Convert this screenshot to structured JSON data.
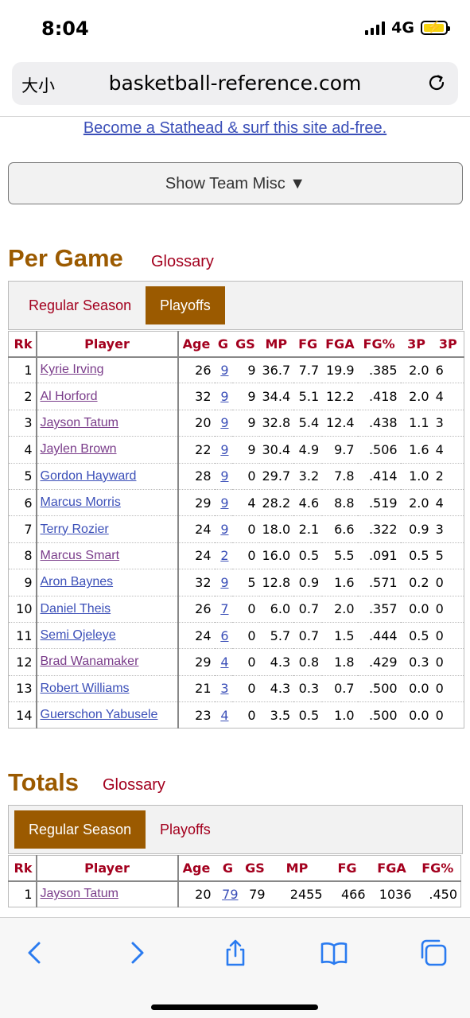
{
  "status": {
    "time": "8:04",
    "network": "4G"
  },
  "browser": {
    "text_size_label": "大小",
    "url": "basketball-reference.com"
  },
  "promo_link": "Become a Stathead & surf this site ad-free.",
  "misc_button": "Show Team Misc ▼",
  "per_game": {
    "title": "Per Game",
    "glossary": "Glossary",
    "tabs": [
      "Regular Season",
      "Playoffs"
    ],
    "active_tab": "Playoffs",
    "columns": [
      "Rk",
      "Player",
      "Age",
      "G",
      "GS",
      "MP",
      "FG",
      "FGA",
      "FG%",
      "3P",
      "3P"
    ],
    "rows": [
      {
        "rk": "1",
        "player": "Kyrie Irving",
        "age": "26",
        "g": "9",
        "gs": "9",
        "mp": "36.7",
        "fg": "7.7",
        "fga": "19.9",
        "fgp": ".385",
        "tp": "2.0",
        "extra": "6",
        "visited": true
      },
      {
        "rk": "2",
        "player": "Al Horford",
        "age": "32",
        "g": "9",
        "gs": "9",
        "mp": "34.4",
        "fg": "5.1",
        "fga": "12.2",
        "fgp": ".418",
        "tp": "2.0",
        "extra": "4",
        "visited": true
      },
      {
        "rk": "3",
        "player": "Jayson Tatum",
        "age": "20",
        "g": "9",
        "gs": "9",
        "mp": "32.8",
        "fg": "5.4",
        "fga": "12.4",
        "fgp": ".438",
        "tp": "1.1",
        "extra": "3",
        "visited": true
      },
      {
        "rk": "4",
        "player": "Jaylen Brown",
        "age": "22",
        "g": "9",
        "gs": "9",
        "mp": "30.4",
        "fg": "4.9",
        "fga": "9.7",
        "fgp": ".506",
        "tp": "1.6",
        "extra": "4",
        "visited": true
      },
      {
        "rk": "5",
        "player": "Gordon Hayward",
        "age": "28",
        "g": "9",
        "gs": "0",
        "mp": "29.7",
        "fg": "3.2",
        "fga": "7.8",
        "fgp": ".414",
        "tp": "1.0",
        "extra": "2",
        "visited": false
      },
      {
        "rk": "6",
        "player": "Marcus Morris",
        "age": "29",
        "g": "9",
        "gs": "4",
        "mp": "28.2",
        "fg": "4.6",
        "fga": "8.8",
        "fgp": ".519",
        "tp": "2.0",
        "extra": "4",
        "visited": false
      },
      {
        "rk": "7",
        "player": "Terry Rozier",
        "age": "24",
        "g": "9",
        "gs": "0",
        "mp": "18.0",
        "fg": "2.1",
        "fga": "6.6",
        "fgp": ".322",
        "tp": "0.9",
        "extra": "3",
        "visited": false
      },
      {
        "rk": "8",
        "player": "Marcus Smart",
        "age": "24",
        "g": "2",
        "gs": "0",
        "mp": "16.0",
        "fg": "0.5",
        "fga": "5.5",
        "fgp": ".091",
        "tp": "0.5",
        "extra": "5",
        "visited": true
      },
      {
        "rk": "9",
        "player": "Aron Baynes",
        "age": "32",
        "g": "9",
        "gs": "5",
        "mp": "12.8",
        "fg": "0.9",
        "fga": "1.6",
        "fgp": ".571",
        "tp": "0.2",
        "extra": "0",
        "visited": false
      },
      {
        "rk": "10",
        "player": "Daniel Theis",
        "age": "26",
        "g": "7",
        "gs": "0",
        "mp": "6.0",
        "fg": "0.7",
        "fga": "2.0",
        "fgp": ".357",
        "tp": "0.0",
        "extra": "0",
        "visited": false
      },
      {
        "rk": "11",
        "player": "Semi Ojeleye",
        "age": "24",
        "g": "6",
        "gs": "0",
        "mp": "5.7",
        "fg": "0.7",
        "fga": "1.5",
        "fgp": ".444",
        "tp": "0.5",
        "extra": "0",
        "visited": false
      },
      {
        "rk": "12",
        "player": "Brad Wanamaker",
        "age": "29",
        "g": "4",
        "gs": "0",
        "mp": "4.3",
        "fg": "0.8",
        "fga": "1.8",
        "fgp": ".429",
        "tp": "0.3",
        "extra": "0",
        "visited": true
      },
      {
        "rk": "13",
        "player": "Robert Williams",
        "age": "21",
        "g": "3",
        "gs": "0",
        "mp": "4.3",
        "fg": "0.3",
        "fga": "0.7",
        "fgp": ".500",
        "tp": "0.0",
        "extra": "0",
        "visited": false
      },
      {
        "rk": "14",
        "player": "Guerschon Yabusele",
        "age": "23",
        "g": "4",
        "gs": "0",
        "mp": "3.5",
        "fg": "0.5",
        "fga": "1.0",
        "fgp": ".500",
        "tp": "0.0",
        "extra": "0",
        "visited": false
      }
    ]
  },
  "totals": {
    "title": "Totals",
    "glossary": "Glossary",
    "tabs": [
      "Regular Season",
      "Playoffs"
    ],
    "active_tab": "Regular Season",
    "columns": [
      "Rk",
      "Player",
      "Age",
      "G",
      "GS",
      "MP",
      "FG",
      "FGA",
      "FG%"
    ],
    "rows": [
      {
        "rk": "1",
        "player": "Jayson Tatum",
        "age": "20",
        "g": "79",
        "gs": "79",
        "mp": "2455",
        "fg": "466",
        "fga": "1036",
        "fgp": ".450",
        "visited": true
      }
    ]
  }
}
